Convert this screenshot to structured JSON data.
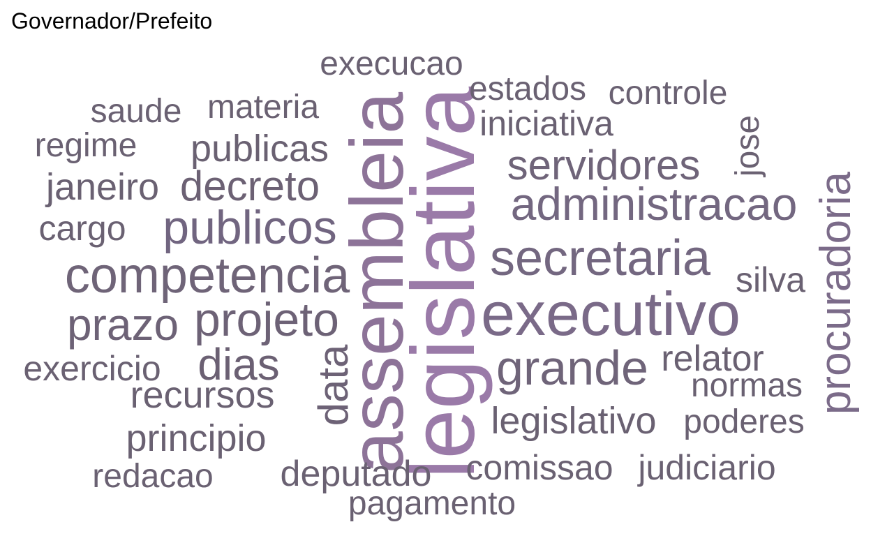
{
  "title": "Governador/Prefeito",
  "colors": {
    "dark": "#6a6172",
    "mid": "#736780",
    "purple": "#8d7398",
    "light_purple": "#9a7aa8"
  },
  "words": [
    {
      "text": "legislativa",
      "weight": 10
    },
    {
      "text": "assembleia",
      "weight": 9
    },
    {
      "text": "executivo",
      "weight": 8
    },
    {
      "text": "competencia",
      "weight": 7
    },
    {
      "text": "secretaria",
      "weight": 7
    },
    {
      "text": "administracao",
      "weight": 6
    },
    {
      "text": "publicos",
      "weight": 6
    },
    {
      "text": "grande",
      "weight": 6
    },
    {
      "text": "projeto",
      "weight": 6
    },
    {
      "text": "procuradoria",
      "weight": 6
    },
    {
      "text": "servidores",
      "weight": 5
    },
    {
      "text": "decreto",
      "weight": 5
    },
    {
      "text": "prazo",
      "weight": 5
    },
    {
      "text": "dias",
      "weight": 5
    },
    {
      "text": "data",
      "weight": 5
    },
    {
      "text": "publicas",
      "weight": 4
    },
    {
      "text": "legislativo",
      "weight": 4
    },
    {
      "text": "recursos",
      "weight": 4
    },
    {
      "text": "principio",
      "weight": 4
    },
    {
      "text": "janeiro",
      "weight": 4
    },
    {
      "text": "iniciativa",
      "weight": 3
    },
    {
      "text": "cargo",
      "weight": 3
    },
    {
      "text": "exercicio",
      "weight": 3
    },
    {
      "text": "relator",
      "weight": 3
    },
    {
      "text": "silva",
      "weight": 3
    },
    {
      "text": "deputado",
      "weight": 3
    },
    {
      "text": "comissao",
      "weight": 3
    },
    {
      "text": "judiciario",
      "weight": 3
    },
    {
      "text": "execucao",
      "weight": 3
    },
    {
      "text": "materia",
      "weight": 3
    },
    {
      "text": "regime",
      "weight": 3
    },
    {
      "text": "saude",
      "weight": 3
    },
    {
      "text": "estados",
      "weight": 3
    },
    {
      "text": "controle",
      "weight": 3
    },
    {
      "text": "jose",
      "weight": 3
    },
    {
      "text": "normas",
      "weight": 3
    },
    {
      "text": "poderes",
      "weight": 3
    },
    {
      "text": "redacao",
      "weight": 3
    },
    {
      "text": "pagamento",
      "weight": 3
    }
  ]
}
